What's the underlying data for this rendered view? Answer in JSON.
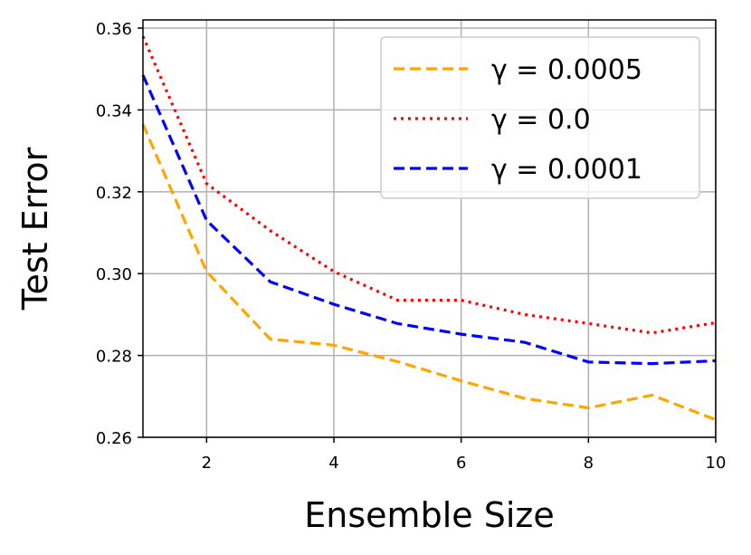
{
  "chart_data": {
    "type": "line",
    "title": "",
    "xlabel": "Ensemble Size",
    "ylabel": "Test Error",
    "xlim": [
      1,
      10
    ],
    "ylim": [
      0.26,
      0.362
    ],
    "xticks": [
      "2",
      "4",
      "6",
      "8",
      "10"
    ],
    "yticks": [
      "0.26",
      "0.28",
      "0.30",
      "0.32",
      "0.34",
      "0.36"
    ],
    "grid": true,
    "legend_position": "top-right",
    "x": [
      1,
      2,
      3,
      4,
      5,
      6,
      7,
      8,
      9,
      10
    ],
    "series": [
      {
        "name": "γ = 0.0005",
        "color": "#ffa500",
        "style": "dashed",
        "values": [
          0.3365,
          0.3005,
          0.284,
          0.2825,
          0.2785,
          0.2738,
          0.2695,
          0.2672,
          0.2703,
          0.2643
        ]
      },
      {
        "name": "γ = 0.0",
        "color": "#ff0000",
        "style": "dotted",
        "values": [
          0.358,
          0.322,
          0.3105,
          0.3005,
          0.2935,
          0.2935,
          0.29,
          0.2878,
          0.2855,
          0.288
        ]
      },
      {
        "name": "γ = 0.0001",
        "color": "#0000ff",
        "style": "dashed",
        "values": [
          0.3485,
          0.313,
          0.298,
          0.2925,
          0.2878,
          0.2852,
          0.2832,
          0.2784,
          0.278,
          0.2787
        ]
      }
    ]
  }
}
